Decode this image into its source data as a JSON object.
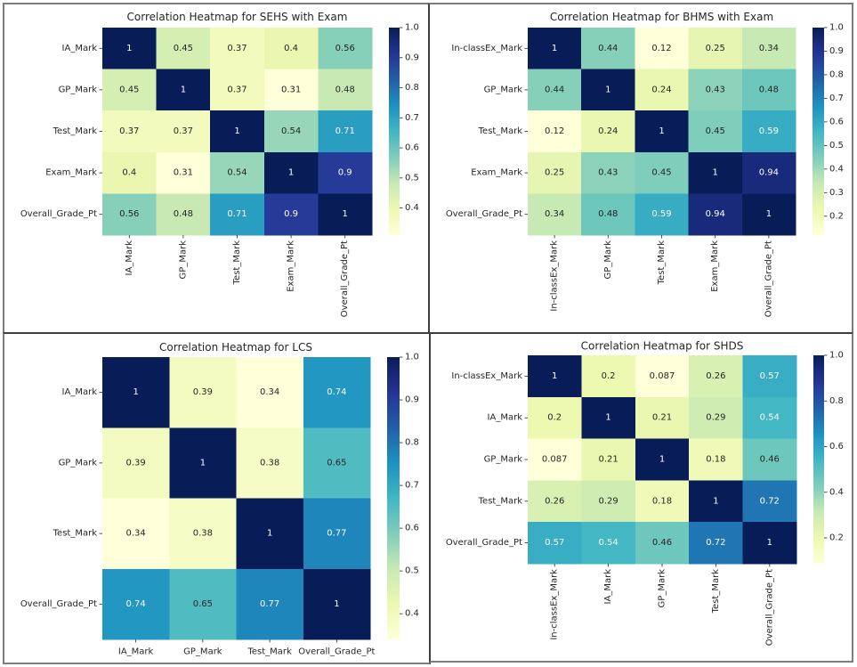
{
  "style": {
    "colormap_colors": [
      "#ffffd9",
      "#edf8b1",
      "#c7e9b4",
      "#7fcdbb",
      "#41b6c4",
      "#1d91c0",
      "#225ea8",
      "#253494",
      "#081d58"
    ],
    "annotation_text_dark": "#262626",
    "annotation_text_light": "#ffffff"
  },
  "chart_data": [
    {
      "type": "heatmap",
      "title": "Correlation Heatmap for SEHS with Exam",
      "xlabel": "",
      "ylabel": "",
      "rows": [
        "IA_Mark",
        "GP_Mark",
        "Test_Mark",
        "Exam_Mark",
        "Overall_Grade_Pt"
      ],
      "columns": [
        "IA_Mark",
        "GP_Mark",
        "Test_Mark",
        "Exam_Mark",
        "Overall_Grade_Pt"
      ],
      "values": [
        [
          1,
          0.45,
          0.37,
          0.4,
          0.56
        ],
        [
          0.45,
          1,
          0.37,
          0.31,
          0.48
        ],
        [
          0.37,
          0.37,
          1,
          0.54,
          0.71
        ],
        [
          0.4,
          0.31,
          0.54,
          1,
          0.9
        ],
        [
          0.56,
          0.48,
          0.71,
          0.9,
          1
        ]
      ],
      "colormap": "YlGnBu",
      "colorbar_range": [
        0.31,
        1.0
      ],
      "colorbar_ticks": [
        "1.0",
        "0.9",
        "0.8",
        "0.7",
        "0.6",
        "0.5",
        "0.4"
      ]
    },
    {
      "type": "heatmap",
      "title": "Correlation Heatmap for BHMS with Exam",
      "xlabel": "",
      "ylabel": "",
      "rows": [
        "In-classEx_Mark",
        "GP_Mark",
        "Test_Mark",
        "Exam_Mark",
        "Overall_Grade_Pt"
      ],
      "columns": [
        "In-classEx_Mark",
        "GP_Mark",
        "Test_Mark",
        "Exam_Mark",
        "Overall_Grade_Pt"
      ],
      "values": [
        [
          1,
          0.44,
          0.12,
          0.25,
          0.34
        ],
        [
          0.44,
          1,
          0.24,
          0.43,
          0.48
        ],
        [
          0.12,
          0.24,
          1,
          0.45,
          0.59
        ],
        [
          0.25,
          0.43,
          0.45,
          1,
          0.94
        ],
        [
          0.34,
          0.48,
          0.59,
          0.94,
          1
        ]
      ],
      "colormap": "YlGnBu",
      "colorbar_range": [
        0.12,
        1.0
      ],
      "colorbar_ticks": [
        "1.0",
        "0.9",
        "0.8",
        "0.7",
        "0.6",
        "0.5",
        "0.4",
        "0.3",
        "0.2"
      ]
    },
    {
      "type": "heatmap",
      "title": "Correlation Heatmap for LCS",
      "xlabel": "",
      "ylabel": "",
      "rows": [
        "IA_Mark",
        "GP_Mark",
        "Test_Mark",
        "Overall_Grade_Pt"
      ],
      "columns": [
        "IA_Mark",
        "GP_Mark",
        "Test_Mark",
        "Overall_Grade_Pt"
      ],
      "values": [
        [
          1,
          0.39,
          0.34,
          0.74
        ],
        [
          0.39,
          1,
          0.38,
          0.65
        ],
        [
          0.34,
          0.38,
          1,
          0.77
        ],
        [
          0.74,
          0.65,
          0.77,
          1
        ]
      ],
      "colormap": "YlGnBu",
      "colorbar_range": [
        0.34,
        1.0
      ],
      "colorbar_ticks": [
        "1.0",
        "0.9",
        "0.8",
        "0.7",
        "0.6",
        "0.5",
        "0.4"
      ]
    },
    {
      "type": "heatmap",
      "title": "Correlation Heatmap for SHDS",
      "xlabel": "",
      "ylabel": "",
      "rows": [
        "In-classEx_Mark",
        "IA_Mark",
        "GP_Mark",
        "Test_Mark",
        "Overall_Grade_Pt"
      ],
      "columns": [
        "In-classEx_Mark",
        "IA_Mark",
        "GP_Mark",
        "Test_Mark",
        "Overall_Grade_Pt"
      ],
      "values": [
        [
          1,
          0.2,
          0.087,
          0.26,
          0.57
        ],
        [
          0.2,
          1,
          0.21,
          0.29,
          0.54
        ],
        [
          0.087,
          0.21,
          1,
          0.18,
          0.46
        ],
        [
          0.26,
          0.29,
          0.18,
          1,
          0.72
        ],
        [
          0.57,
          0.54,
          0.46,
          0.72,
          1
        ]
      ],
      "colormap": "YlGnBu",
      "colorbar_range": [
        0.087,
        1.0
      ],
      "colorbar_ticks": [
        "1.0",
        "0.8",
        "0.6",
        "0.4",
        "0.2"
      ]
    }
  ]
}
